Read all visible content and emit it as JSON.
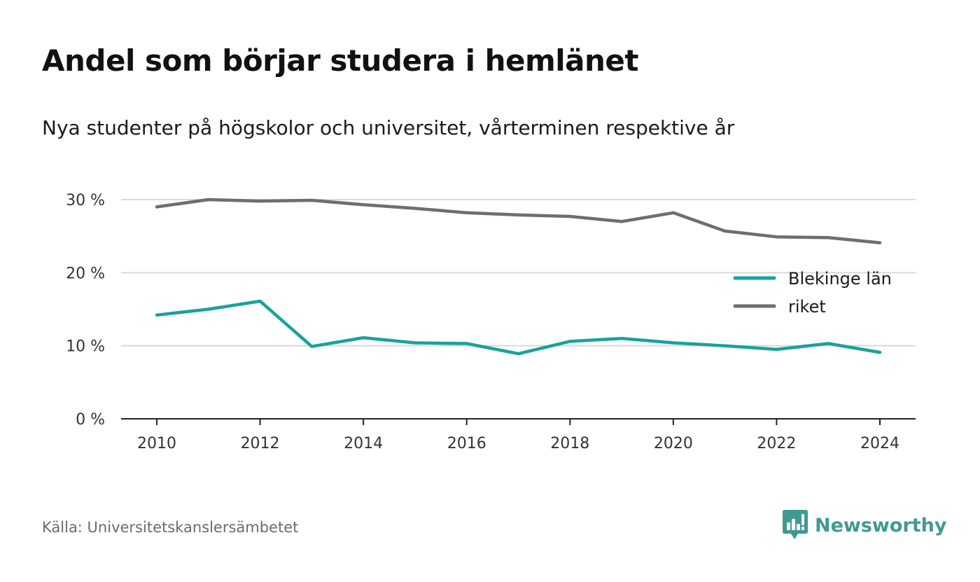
{
  "header": {
    "title": "Andel som börjar studera i hemlänet",
    "subtitle": "Nya studenter på högskolor och universitet, vårterminen respektive år"
  },
  "footer": {
    "source": "Källa: Universitetskanslersämbetet",
    "brand": "Newsworthy",
    "brand_icon": "newsworthy-logo-icon"
  },
  "colors": {
    "blekinge": "#17a39a",
    "riket": "#6e6d73",
    "grid": "#d9d9d9",
    "axis": "#222222",
    "brand": "#3f9a92"
  },
  "chart_data": {
    "type": "line",
    "x": [
      2010,
      2011,
      2012,
      2013,
      2014,
      2015,
      2016,
      2017,
      2018,
      2019,
      2020,
      2021,
      2022,
      2023,
      2024
    ],
    "x_ticks": [
      2010,
      2012,
      2014,
      2016,
      2018,
      2020,
      2022,
      2024
    ],
    "x_tick_labels": [
      "2010",
      "2012",
      "2014",
      "2016",
      "2018",
      "2020",
      "2022",
      "2024"
    ],
    "y_ticks": [
      0,
      10,
      20,
      30
    ],
    "y_tick_labels": [
      "0 %",
      "10 %",
      "20 %",
      "30 %"
    ],
    "ylim": [
      0,
      30
    ],
    "grid": true,
    "legend_position": "right",
    "series": [
      {
        "name": "Blekinge län",
        "color": "#17a39a",
        "values": [
          14.2,
          15.0,
          16.1,
          9.9,
          11.1,
          10.4,
          10.3,
          8.9,
          10.6,
          11.0,
          10.4,
          10.0,
          9.5,
          10.3,
          9.1
        ]
      },
      {
        "name": "riket",
        "color": "#6e6d73",
        "values": [
          29.0,
          30.0,
          29.8,
          29.9,
          29.3,
          28.8,
          28.2,
          27.9,
          27.7,
          27.0,
          28.2,
          25.7,
          24.9,
          24.8,
          24.1
        ]
      }
    ]
  }
}
